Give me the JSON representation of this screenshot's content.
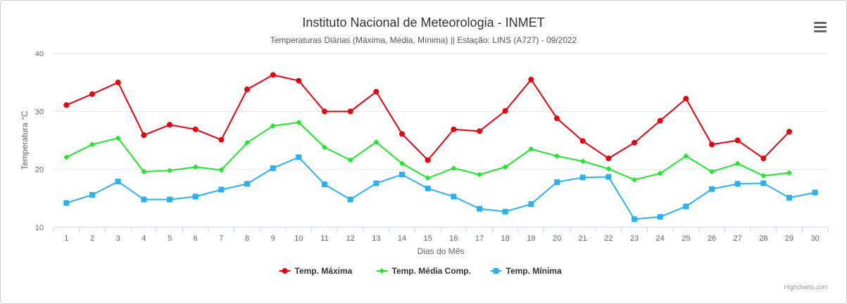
{
  "header": {
    "title": "Instituto Nacional de Meteorologia - INMET",
    "subtitle": "Temperaturas Diárias (Máxima, Média, Mínima) || Estação: LINS (A727) - 09/2022"
  },
  "menu": {
    "icon": "hamburger-menu-icon"
  },
  "credits": "Highcharts.com",
  "chart_data": {
    "type": "line",
    "title": "Instituto Nacional de Meteorologia - INMET",
    "subtitle": "Temperaturas Diárias (Máxima, Média, Mínima) || Estação: LINS (A727) - 09/2022",
    "xlabel": "Dias do Mês",
    "ylabel": "Temperatura °C",
    "x": [
      1,
      2,
      3,
      4,
      5,
      6,
      7,
      8,
      9,
      10,
      11,
      12,
      13,
      14,
      15,
      16,
      17,
      18,
      19,
      20,
      21,
      22,
      23,
      24,
      25,
      26,
      27,
      28,
      29,
      30
    ],
    "ylim": [
      10,
      40
    ],
    "yticks": [
      10,
      20,
      30,
      40
    ],
    "grid": true,
    "legend_position": "bottom-center",
    "series": [
      {
        "name": "Temp. Máxima",
        "color": "#e8000b",
        "marker": "circle",
        "values": [
          31.1,
          33.0,
          35.0,
          25.9,
          27.7,
          26.9,
          25.1,
          33.8,
          36.3,
          35.3,
          30.0,
          30.0,
          33.4,
          26.1,
          21.6,
          26.9,
          26.6,
          30.1,
          35.5,
          28.8,
          24.9,
          21.9,
          24.6,
          28.4,
          32.2,
          24.3,
          25.0,
          21.9,
          26.5,
          null
        ]
      },
      {
        "name": "Temp. Média Comp.",
        "color": "#1ee82a",
        "marker": "diamond",
        "values": [
          22.1,
          24.3,
          25.4,
          19.6,
          19.8,
          20.4,
          19.9,
          24.6,
          27.5,
          28.1,
          23.8,
          21.6,
          24.7,
          21.0,
          18.5,
          20.2,
          19.1,
          20.4,
          23.5,
          22.3,
          21.4,
          20.1,
          18.2,
          19.3,
          22.3,
          19.6,
          21.0,
          18.9,
          19.4,
          null
        ]
      },
      {
        "name": "Temp. Mínima",
        "color": "#2ab1f3",
        "marker": "square",
        "values": [
          14.2,
          15.6,
          17.9,
          14.8,
          14.8,
          15.3,
          16.5,
          17.5,
          20.2,
          22.1,
          17.4,
          14.8,
          17.6,
          19.1,
          16.7,
          15.3,
          13.2,
          12.7,
          14.0,
          17.8,
          18.6,
          18.7,
          11.4,
          11.8,
          13.6,
          16.6,
          17.5,
          17.6,
          15.1,
          16.0
        ]
      }
    ]
  }
}
